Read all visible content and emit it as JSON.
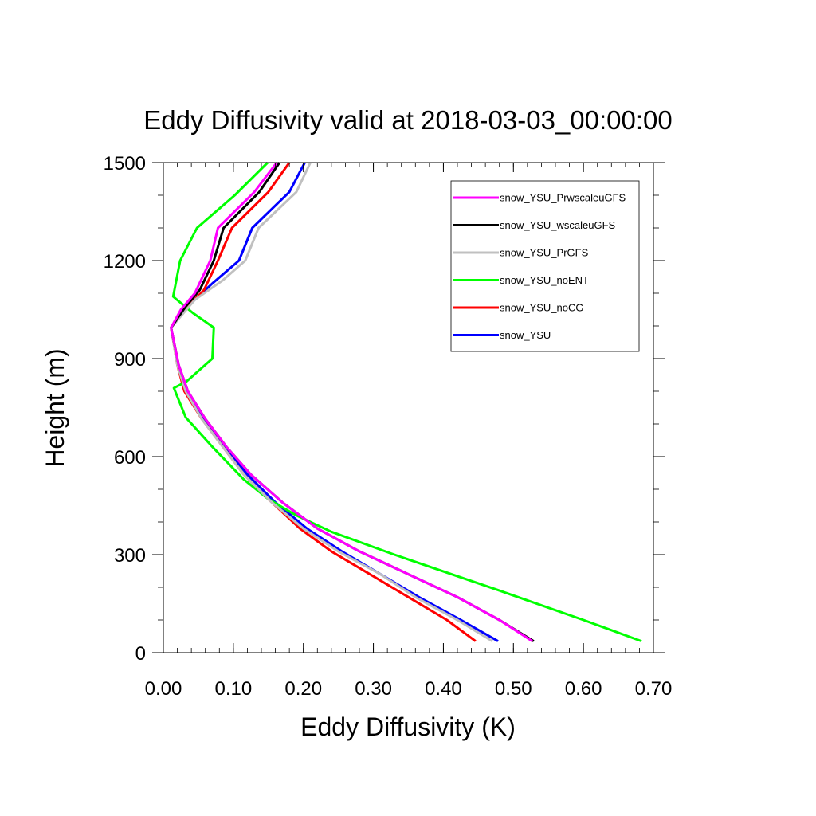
{
  "chart_data": {
    "type": "line",
    "title": "Eddy Diffusivity valid at 2018-03-03_00:00:00",
    "xlabel": "Eddy Diffusivity (K)",
    "ylabel": "Height (m)",
    "xlim": [
      0.0,
      0.7
    ],
    "ylim": [
      0,
      1500
    ],
    "xticks": [
      "0.00",
      "0.10",
      "0.20",
      "0.30",
      "0.40",
      "0.50",
      "0.60",
      "0.70"
    ],
    "yticks": [
      "0",
      "300",
      "600",
      "900",
      "1200",
      "1500"
    ],
    "legend_position": "top-right",
    "series": [
      {
        "name": "snow_YSU_PrwscaleuGFS",
        "color": "#ff00ff",
        "points": [
          [
            0.527,
            35
          ],
          [
            0.48,
            100
          ],
          [
            0.42,
            170
          ],
          [
            0.35,
            240
          ],
          [
            0.28,
            310
          ],
          [
            0.22,
            380
          ],
          [
            0.17,
            460
          ],
          [
            0.125,
            545
          ],
          [
            0.09,
            630
          ],
          [
            0.06,
            715
          ],
          [
            0.035,
            800
          ],
          [
            0.022,
            880
          ],
          [
            0.011,
            995
          ],
          [
            0.025,
            1050
          ],
          [
            0.045,
            1100
          ],
          [
            0.067,
            1200
          ],
          [
            0.078,
            1300
          ],
          [
            0.13,
            1410
          ],
          [
            0.162,
            1500
          ]
        ]
      },
      {
        "name": "snow_YSU_wscaleuGFS",
        "color": "#000000",
        "points": [
          [
            0.529,
            35
          ],
          [
            0.48,
            100
          ],
          [
            0.42,
            170
          ],
          [
            0.35,
            240
          ],
          [
            0.28,
            310
          ],
          [
            0.22,
            380
          ],
          [
            0.17,
            460
          ],
          [
            0.125,
            545
          ],
          [
            0.09,
            630
          ],
          [
            0.06,
            715
          ],
          [
            0.035,
            800
          ],
          [
            0.022,
            880
          ],
          [
            0.011,
            995
          ],
          [
            0.032,
            1060
          ],
          [
            0.052,
            1110
          ],
          [
            0.072,
            1200
          ],
          [
            0.086,
            1300
          ],
          [
            0.137,
            1410
          ],
          [
            0.166,
            1500
          ]
        ]
      },
      {
        "name": "snow_YSU_PrGFS",
        "color": "#c0c0c0",
        "points": [
          [
            0.47,
            35
          ],
          [
            0.42,
            100
          ],
          [
            0.36,
            170
          ],
          [
            0.31,
            240
          ],
          [
            0.25,
            310
          ],
          [
            0.2,
            380
          ],
          [
            0.155,
            460
          ],
          [
            0.115,
            545
          ],
          [
            0.085,
            630
          ],
          [
            0.055,
            715
          ],
          [
            0.032,
            800
          ],
          [
            0.02,
            880
          ],
          [
            0.011,
            995
          ],
          [
            0.045,
            1080
          ],
          [
            0.085,
            1140
          ],
          [
            0.117,
            1200
          ],
          [
            0.136,
            1300
          ],
          [
            0.19,
            1410
          ],
          [
            0.21,
            1500
          ]
        ]
      },
      {
        "name": "snow_YSU_noENT",
        "color": "#00ff00",
        "points": [
          [
            0.683,
            35
          ],
          [
            0.6,
            100
          ],
          [
            0.48,
            190
          ],
          [
            0.33,
            300
          ],
          [
            0.24,
            370
          ],
          [
            0.19,
            420
          ],
          [
            0.15,
            470
          ],
          [
            0.115,
            530
          ],
          [
            0.07,
            630
          ],
          [
            0.032,
            720
          ],
          [
            0.015,
            810
          ],
          [
            0.033,
            830
          ],
          [
            0.07,
            900
          ],
          [
            0.072,
            995
          ],
          [
            0.042,
            1040
          ],
          [
            0.014,
            1090
          ],
          [
            0.024,
            1200
          ],
          [
            0.048,
            1300
          ],
          [
            0.102,
            1400
          ],
          [
            0.149,
            1500
          ]
        ]
      },
      {
        "name": "snow_YSU_noCG",
        "color": "#ff0000",
        "points": [
          [
            0.446,
            35
          ],
          [
            0.405,
            100
          ],
          [
            0.35,
            170
          ],
          [
            0.295,
            240
          ],
          [
            0.24,
            310
          ],
          [
            0.195,
            380
          ],
          [
            0.15,
            470
          ],
          [
            0.115,
            545
          ],
          [
            0.085,
            630
          ],
          [
            0.055,
            715
          ],
          [
            0.03,
            800
          ],
          [
            0.02,
            880
          ],
          [
            0.011,
            995
          ],
          [
            0.035,
            1060
          ],
          [
            0.058,
            1110
          ],
          [
            0.078,
            1200
          ],
          [
            0.098,
            1300
          ],
          [
            0.15,
            1410
          ],
          [
            0.18,
            1500
          ]
        ]
      },
      {
        "name": "snow_YSU",
        "color": "#0000ff",
        "points": [
          [
            0.478,
            35
          ],
          [
            0.425,
            100
          ],
          [
            0.365,
            170
          ],
          [
            0.31,
            240
          ],
          [
            0.255,
            310
          ],
          [
            0.205,
            380
          ],
          [
            0.16,
            460
          ],
          [
            0.12,
            545
          ],
          [
            0.088,
            630
          ],
          [
            0.058,
            715
          ],
          [
            0.033,
            800
          ],
          [
            0.021,
            880
          ],
          [
            0.011,
            995
          ],
          [
            0.04,
            1070
          ],
          [
            0.07,
            1130
          ],
          [
            0.108,
            1200
          ],
          [
            0.127,
            1300
          ],
          [
            0.18,
            1410
          ],
          [
            0.202,
            1500
          ]
        ]
      }
    ]
  }
}
